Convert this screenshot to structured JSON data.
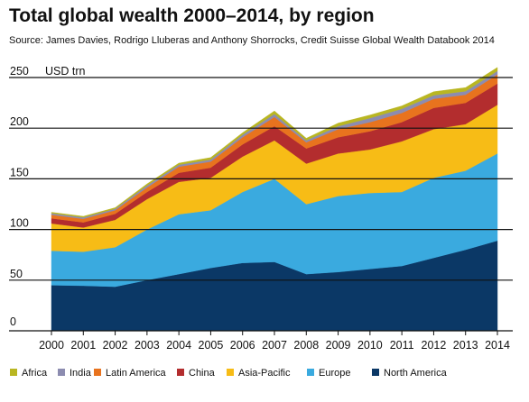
{
  "title": "Total global wealth 2000–2014, by region",
  "subtitle": "Source: James Davies, Rodrigo Lluberas and Anthony Shorrocks, Credit Suisse Global Wealth Databook 2014",
  "chart_data": {
    "type": "area",
    "stacked": true,
    "title": "Total global wealth 2000–2014, by region",
    "ylabel": "USD trn",
    "ylim": [
      0,
      250
    ],
    "yticks": [
      0,
      50,
      100,
      150,
      200,
      250
    ],
    "grid": true,
    "legend_position": "bottom",
    "x": [
      "2000",
      "2001",
      "2002",
      "2003",
      "2004",
      "2005",
      "2006",
      "2007",
      "2008",
      "2009",
      "2010",
      "2011",
      "2012",
      "2013",
      "2014"
    ],
    "series": [
      {
        "name": "North America",
        "color": "#0b3866",
        "values": [
          45,
          44.5,
          43.5,
          50,
          56,
          62,
          67,
          68,
          56,
          58,
          61,
          64,
          72,
          80,
          89
        ]
      },
      {
        "name": "Europe",
        "color": "#3aaadf",
        "values": [
          34,
          33.5,
          39,
          50,
          59,
          57,
          70,
          82,
          69,
          75,
          75,
          73,
          79,
          78,
          86
        ]
      },
      {
        "name": "Asia-Pacific",
        "color": "#f7bc16",
        "values": [
          27,
          24,
          27,
          30,
          32,
          32,
          35,
          38,
          40,
          42,
          43,
          50,
          48,
          46,
          48
        ]
      },
      {
        "name": "China",
        "color": "#b32d2e",
        "values": [
          5,
          5,
          6,
          7,
          9,
          10,
          12,
          14,
          15,
          16,
          18,
          19,
          21,
          21,
          21
        ]
      },
      {
        "name": "Latin America",
        "color": "#e8731e",
        "values": [
          3.5,
          3.5,
          3.5,
          4.5,
          6,
          6,
          7,
          9,
          6,
          8,
          9,
          9,
          9,
          8,
          9
        ]
      },
      {
        "name": "India",
        "color": "#8c8cb0",
        "values": [
          1.5,
          1.5,
          1.5,
          2,
          2,
          2,
          2.5,
          3,
          2,
          3,
          4,
          4,
          3.5,
          3.5,
          3.5
        ]
      },
      {
        "name": "Africa",
        "color": "#b9b622",
        "values": [
          1,
          1,
          1,
          1.5,
          1.5,
          2,
          2,
          3,
          2,
          3,
          3,
          3,
          3.5,
          3.5,
          3.5
        ]
      }
    ]
  }
}
